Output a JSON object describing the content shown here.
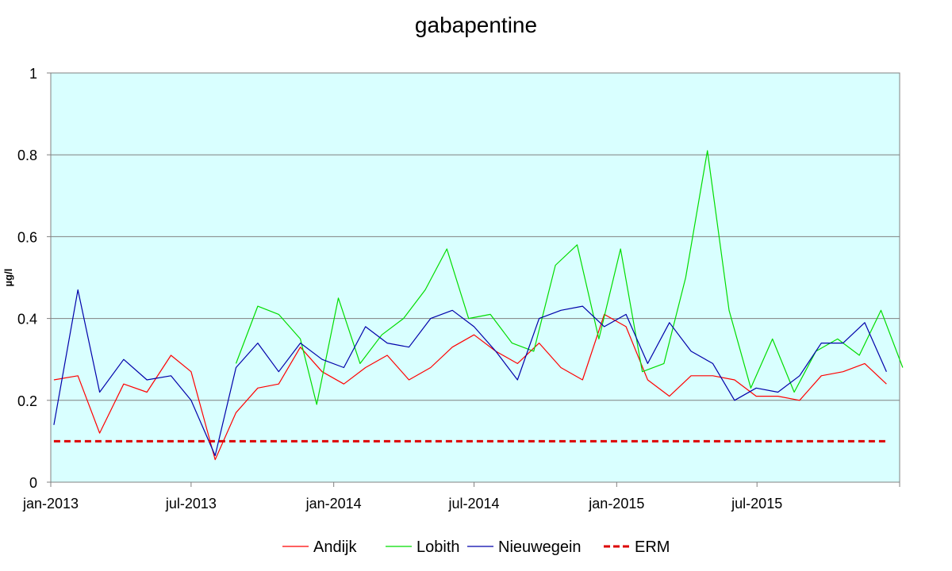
{
  "chart_data": {
    "type": "line",
    "title": "gabapentine",
    "xlabel": "",
    "ylabel": "µg/l",
    "ylim": [
      0,
      1
    ],
    "yticks": [
      "0",
      "0.2",
      "0.4",
      "0.6",
      "0.8",
      "1"
    ],
    "xlim": [
      "2013-01-01",
      "2016-01-01"
    ],
    "xticks": [
      {
        "date": "2013-01-01",
        "label": "jan-2013"
      },
      {
        "date": "2013-07-01",
        "label": "jul-2013"
      },
      {
        "date": "2014-01-01",
        "label": "jan-2014"
      },
      {
        "date": "2014-07-01",
        "label": "jul-2014"
      },
      {
        "date": "2015-01-01",
        "label": "jan-2015"
      },
      {
        "date": "2015-07-01",
        "label": "jul-2015"
      }
    ],
    "grid": true,
    "plot_background": "#d9ffff",
    "legend_position": "bottom",
    "series": [
      {
        "name": "Andijk",
        "color": "#ff0000",
        "style": "solid",
        "points": [
          [
            "2013-01-05",
            0.25
          ],
          [
            "2013-02-05",
            0.26
          ],
          [
            "2013-03-05",
            0.12
          ],
          [
            "2013-04-05",
            0.24
          ],
          [
            "2013-05-05",
            0.22
          ],
          [
            "2013-06-05",
            0.31
          ],
          [
            "2013-07-01",
            0.27
          ],
          [
            "2013-08-01",
            0.055
          ],
          [
            "2013-08-28",
            0.17
          ],
          [
            "2013-09-25",
            0.23
          ],
          [
            "2013-10-22",
            0.24
          ],
          [
            "2013-11-19",
            0.33
          ],
          [
            "2013-12-17",
            0.27
          ],
          [
            "2014-01-14",
            0.24
          ],
          [
            "2014-02-11",
            0.28
          ],
          [
            "2014-03-11",
            0.31
          ],
          [
            "2014-04-08",
            0.25
          ],
          [
            "2014-05-06",
            0.28
          ],
          [
            "2014-06-03",
            0.33
          ],
          [
            "2014-07-01",
            0.36
          ],
          [
            "2014-07-29",
            0.32
          ],
          [
            "2014-08-26",
            0.29
          ],
          [
            "2014-09-23",
            0.34
          ],
          [
            "2014-10-21",
            0.28
          ],
          [
            "2014-11-18",
            0.25
          ],
          [
            "2014-12-16",
            0.41
          ],
          [
            "2015-01-13",
            0.38
          ],
          [
            "2015-02-10",
            0.25
          ],
          [
            "2015-03-10",
            0.21
          ],
          [
            "2015-04-07",
            0.26
          ],
          [
            "2015-05-05",
            0.26
          ],
          [
            "2015-06-02",
            0.25
          ],
          [
            "2015-06-30",
            0.21
          ],
          [
            "2015-07-28",
            0.21
          ],
          [
            "2015-08-25",
            0.2
          ],
          [
            "2015-09-22",
            0.26
          ],
          [
            "2015-10-20",
            0.27
          ],
          [
            "2015-11-17",
            0.29
          ],
          [
            "2015-12-15",
            0.24
          ]
        ]
      },
      {
        "name": "Lobith",
        "color": "#00dd00",
        "style": "solid",
        "points": [
          [
            "2013-08-28",
            0.29
          ],
          [
            "2013-09-25",
            0.43
          ],
          [
            "2013-10-22",
            0.41
          ],
          [
            "2013-11-19",
            0.35
          ],
          [
            "2013-12-10",
            0.19
          ],
          [
            "2014-01-07",
            0.45
          ],
          [
            "2014-02-04",
            0.29
          ],
          [
            "2014-03-04",
            0.36
          ],
          [
            "2014-04-01",
            0.4
          ],
          [
            "2014-04-29",
            0.47
          ],
          [
            "2014-05-27",
            0.57
          ],
          [
            "2014-06-24",
            0.4
          ],
          [
            "2014-07-22",
            0.41
          ],
          [
            "2014-08-19",
            0.34
          ],
          [
            "2014-09-16",
            0.32
          ],
          [
            "2014-10-14",
            0.53
          ],
          [
            "2014-11-11",
            0.58
          ],
          [
            "2014-12-09",
            0.35
          ],
          [
            "2015-01-06",
            0.57
          ],
          [
            "2015-02-03",
            0.27
          ],
          [
            "2015-03-03",
            0.29
          ],
          [
            "2015-03-31",
            0.5
          ],
          [
            "2015-04-28",
            0.81
          ],
          [
            "2015-05-26",
            0.42
          ],
          [
            "2015-06-23",
            0.23
          ],
          [
            "2015-07-21",
            0.35
          ],
          [
            "2015-08-18",
            0.22
          ],
          [
            "2015-09-15",
            0.32
          ],
          [
            "2015-10-13",
            0.35
          ],
          [
            "2015-11-10",
            0.31
          ],
          [
            "2015-12-08",
            0.42
          ],
          [
            "2016-01-05",
            0.28
          ]
        ]
      },
      {
        "name": "Nieuwegein",
        "color": "#0000aa",
        "style": "solid",
        "points": [
          [
            "2013-01-05",
            0.14
          ],
          [
            "2013-02-05",
            0.47
          ],
          [
            "2013-03-05",
            0.22
          ],
          [
            "2013-04-05",
            0.3
          ],
          [
            "2013-05-05",
            0.25
          ],
          [
            "2013-06-05",
            0.26
          ],
          [
            "2013-07-01",
            0.2
          ],
          [
            "2013-08-01",
            0.065
          ],
          [
            "2013-08-28",
            0.28
          ],
          [
            "2013-09-25",
            0.34
          ],
          [
            "2013-10-22",
            0.27
          ],
          [
            "2013-11-19",
            0.34
          ],
          [
            "2013-12-17",
            0.3
          ],
          [
            "2014-01-14",
            0.28
          ],
          [
            "2014-02-11",
            0.38
          ],
          [
            "2014-03-11",
            0.34
          ],
          [
            "2014-04-08",
            0.33
          ],
          [
            "2014-05-06",
            0.4
          ],
          [
            "2014-06-03",
            0.42
          ],
          [
            "2014-07-01",
            0.38
          ],
          [
            "2014-07-29",
            0.32
          ],
          [
            "2014-08-26",
            0.25
          ],
          [
            "2014-09-23",
            0.4
          ],
          [
            "2014-10-21",
            0.42
          ],
          [
            "2014-11-18",
            0.43
          ],
          [
            "2014-12-16",
            0.38
          ],
          [
            "2015-01-13",
            0.41
          ],
          [
            "2015-02-10",
            0.29
          ],
          [
            "2015-03-10",
            0.39
          ],
          [
            "2015-04-07",
            0.32
          ],
          [
            "2015-05-05",
            0.29
          ],
          [
            "2015-06-02",
            0.2
          ],
          [
            "2015-06-30",
            0.23
          ],
          [
            "2015-07-28",
            0.22
          ],
          [
            "2015-08-25",
            0.26
          ],
          [
            "2015-09-22",
            0.34
          ],
          [
            "2015-10-20",
            0.34
          ],
          [
            "2015-11-17",
            0.39
          ],
          [
            "2015-12-15",
            0.27
          ]
        ]
      },
      {
        "name": "ERM",
        "color": "#dd0000",
        "style": "dashed",
        "points": [
          [
            "2013-01-05",
            0.1
          ],
          [
            "2015-12-15",
            0.1
          ]
        ]
      }
    ]
  }
}
